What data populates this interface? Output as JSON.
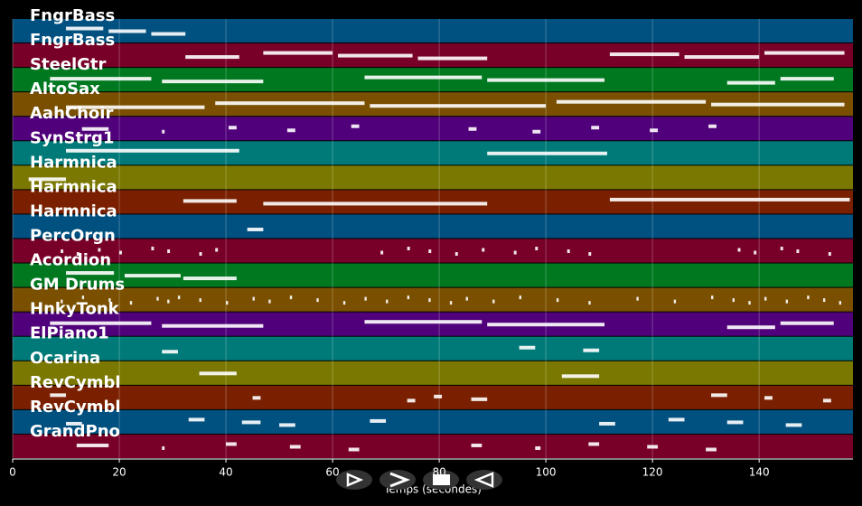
{
  "chart_data": {
    "type": "piano-roll",
    "x_label": "Temps (secondes)",
    "xlim": [
      0,
      157.6
    ],
    "xticks": [
      0,
      20,
      40,
      60,
      80,
      100,
      120,
      140
    ],
    "grid": true,
    "band_colors": [
      "#005080",
      "#780028",
      "#007820",
      "#7a5000",
      "#50007a",
      "#007a78",
      "#7a7800",
      "#7a2000"
    ],
    "note_color": "#ffffff",
    "tracks": [
      {
        "name": "FngrBass",
        "notes": [
          [
            10,
            17
          ],
          [
            18,
            25
          ],
          [
            26,
            32.4
          ]
        ]
      },
      {
        "name": "FngrBass",
        "notes": [
          [
            32.4,
            42.5
          ],
          [
            47,
            60
          ],
          [
            61,
            75
          ],
          [
            76,
            89
          ],
          [
            112,
            125
          ],
          [
            126,
            140
          ],
          [
            141,
            156
          ]
        ]
      },
      {
        "name": "SteelGtr",
        "notes": [
          [
            7,
            26
          ],
          [
            28,
            47
          ],
          [
            66,
            88
          ],
          [
            89,
            111
          ],
          [
            134,
            143
          ],
          [
            144,
            154
          ]
        ]
      },
      {
        "name": "AltoSax",
        "notes": [
          [
            10,
            36
          ],
          [
            38,
            66
          ],
          [
            67,
            100
          ],
          [
            102,
            130
          ],
          [
            131,
            156
          ]
        ]
      },
      {
        "name": "AahChoir",
        "notes": [
          [
            13,
            18
          ],
          [
            28,
            28.5
          ],
          [
            40.5,
            42
          ],
          [
            51.5,
            53
          ],
          [
            63.5,
            65
          ],
          [
            85.5,
            87
          ],
          [
            97.5,
            99
          ],
          [
            108.5,
            110
          ],
          [
            119.5,
            121
          ],
          [
            130.5,
            132
          ]
        ]
      },
      {
        "name": "SynStrg1",
        "notes": [
          [
            10,
            42.5
          ],
          [
            89,
            111.5
          ]
        ]
      },
      {
        "name": "Harmnica",
        "notes": [
          [
            3,
            10
          ]
        ]
      },
      {
        "name": "Harmnica",
        "notes": [
          [
            32,
            42
          ],
          [
            47,
            89
          ],
          [
            112,
            157
          ]
        ]
      },
      {
        "name": "Harmnica",
        "notes": [
          [
            44,
            47
          ]
        ]
      },
      {
        "name": "PercOrgn",
        "notes": [
          [
            9,
            9.5
          ],
          [
            12,
            12.5
          ],
          [
            16,
            16.5
          ],
          [
            20,
            20.5
          ],
          [
            26,
            26.5
          ],
          [
            29,
            29.5
          ],
          [
            35,
            35.5
          ],
          [
            38,
            38.5
          ],
          [
            69,
            69.5
          ],
          [
            74,
            74.5
          ],
          [
            78,
            78.5
          ],
          [
            83,
            83.5
          ],
          [
            88,
            88.5
          ],
          [
            94,
            94.5
          ],
          [
            98,
            98.5
          ],
          [
            104,
            104.5
          ],
          [
            108,
            108.5
          ],
          [
            136,
            136.5
          ],
          [
            139,
            139.5
          ],
          [
            144,
            144.5
          ],
          [
            147,
            147.5
          ],
          [
            153,
            153.5
          ]
        ]
      },
      {
        "name": "Acordion",
        "notes": [
          [
            10,
            19
          ],
          [
            21,
            31.5
          ],
          [
            32,
            42
          ]
        ]
      },
      {
        "name": "GM Drums",
        "notes": [
          [
            9,
            9.4
          ],
          [
            13,
            13.4
          ],
          [
            18,
            18.4
          ],
          [
            22,
            22.4
          ],
          [
            27,
            27.4
          ],
          [
            29,
            29.4
          ],
          [
            31,
            31.4
          ],
          [
            35,
            35.4
          ],
          [
            40,
            40.4
          ],
          [
            45,
            45.4
          ],
          [
            48,
            48.4
          ],
          [
            52,
            52.4
          ],
          [
            57,
            57.4
          ],
          [
            62,
            62.4
          ],
          [
            66,
            66.4
          ],
          [
            70,
            70.4
          ],
          [
            74,
            74.4
          ],
          [
            78,
            78.4
          ],
          [
            82,
            82.4
          ],
          [
            85,
            85.4
          ],
          [
            90,
            90.4
          ],
          [
            95,
            95.4
          ],
          [
            102,
            102.4
          ],
          [
            108,
            108.4
          ],
          [
            117,
            117.4
          ],
          [
            124,
            124.4
          ],
          [
            131,
            131.4
          ],
          [
            135,
            135.4
          ],
          [
            138,
            138.4
          ],
          [
            141,
            141.4
          ],
          [
            145,
            145.4
          ],
          [
            149,
            149.4
          ],
          [
            152,
            152.4
          ],
          [
            155,
            155.4
          ]
        ]
      },
      {
        "name": "HnkyTonk",
        "notes": [
          [
            7,
            26
          ],
          [
            28,
            47
          ],
          [
            66,
            88
          ],
          [
            89,
            111
          ],
          [
            134,
            143
          ],
          [
            144,
            154
          ]
        ]
      },
      {
        "name": "ElPiano1",
        "notes": [
          [
            28,
            31
          ],
          [
            95,
            98
          ],
          [
            107,
            110
          ]
        ]
      },
      {
        "name": "Ocarina",
        "notes": [
          [
            35,
            42
          ],
          [
            103,
            110
          ]
        ]
      },
      {
        "name": "RevCymbl",
        "notes": [
          [
            7,
            10
          ],
          [
            45,
            46.5
          ],
          [
            74,
            75.5
          ],
          [
            79,
            80.5
          ],
          [
            86,
            89
          ],
          [
            131,
            134
          ],
          [
            141,
            142.5
          ],
          [
            152,
            153.5
          ]
        ]
      },
      {
        "name": "RevCymbl",
        "notes": [
          [
            10,
            13
          ],
          [
            33,
            36
          ],
          [
            43,
            46.5
          ],
          [
            50,
            53
          ],
          [
            67,
            70
          ],
          [
            110,
            113
          ],
          [
            123,
            126
          ],
          [
            134,
            137
          ],
          [
            145,
            148
          ]
        ]
      },
      {
        "name": "GrandPno",
        "notes": [
          [
            12,
            18
          ],
          [
            28,
            28.5
          ],
          [
            40,
            42
          ],
          [
            52,
            54
          ],
          [
            63,
            65
          ],
          [
            86,
            88
          ],
          [
            98,
            99
          ],
          [
            108,
            110
          ],
          [
            119,
            121
          ],
          [
            130,
            132
          ]
        ]
      }
    ]
  }
}
